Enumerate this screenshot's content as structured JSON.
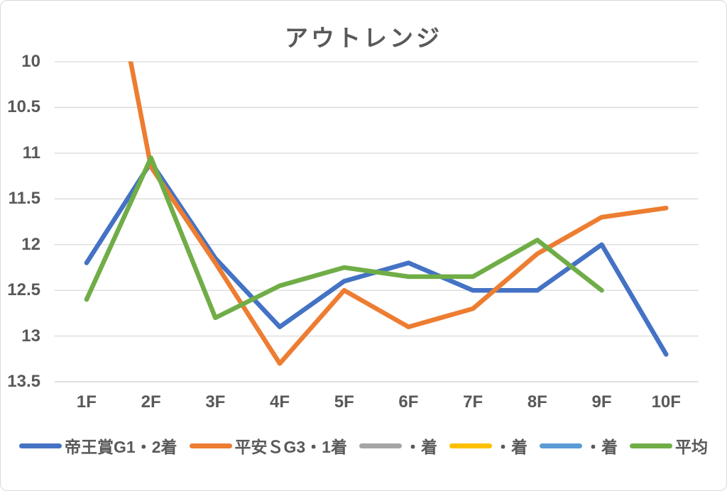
{
  "chart_data": {
    "type": "line",
    "title": "アウトレンジ",
    "categories": [
      "1F",
      "2F",
      "3F",
      "4F",
      "5F",
      "6F",
      "7F",
      "8F",
      "9F",
      "10F"
    ],
    "y_axis": {
      "min": 10,
      "max": 13.5,
      "step": 0.5,
      "reversed": true,
      "ticks": [
        "10",
        "10.5",
        "11",
        "11.5",
        "12",
        "12.5",
        "13",
        "13.5"
      ]
    },
    "grid": true,
    "legend_position": "bottom",
    "series": [
      {
        "name": "帝王賞G1・2着",
        "color": "#4472C4",
        "values": [
          12.2,
          11.1,
          12.15,
          12.9,
          12.4,
          12.2,
          12.5,
          12.5,
          12.0,
          13.2
        ]
      },
      {
        "name": "平安ＳG3・1着",
        "color": "#ED7D31",
        "values": [
          7.5,
          11.15,
          12.2,
          13.3,
          12.5,
          12.9,
          12.7,
          12.1,
          11.7,
          11.6
        ],
        "note": "1F value is above the axis maximum; line is clipped at the top of the plot area"
      },
      {
        "name": "・着",
        "color": "#A5A5A5",
        "values": []
      },
      {
        "name": "・着",
        "color": "#FFC000",
        "values": []
      },
      {
        "name": "・着",
        "color": "#5B9BD5",
        "values": []
      },
      {
        "name": "平均",
        "color": "#70AD47",
        "values": [
          12.6,
          11.05,
          12.8,
          12.45,
          12.25,
          12.35,
          12.35,
          11.95,
          12.5,
          null
        ]
      }
    ],
    "colors": {
      "text": "#595959",
      "gridline": "#D9D9D9",
      "background": "#FFFFFF"
    }
  }
}
